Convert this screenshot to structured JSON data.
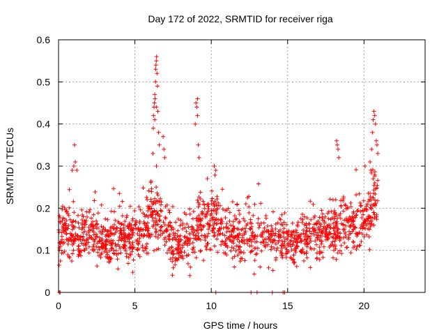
{
  "chart_data": {
    "type": "scatter",
    "title": "Day 172 of 2022, SRMTID for receiver riga",
    "xlabel": "GPS time / hours",
    "ylabel": "SRMTID / TECUs",
    "xlim": [
      0,
      24
    ],
    "ylim": [
      0,
      0.6
    ],
    "xticks": [
      0,
      5,
      10,
      15,
      20
    ],
    "yticks": [
      0,
      0.1,
      0.2,
      0.3,
      0.4,
      0.5,
      0.6
    ],
    "xtick_labels": [
      "0",
      "5",
      "10",
      "15",
      "20"
    ],
    "ytick_labels": [
      "0",
      "0.1",
      "0.2",
      "0.3",
      "0.4",
      "0.5",
      "0.6"
    ],
    "grid": true,
    "marker": "+",
    "color": "#ff0000",
    "envelope": [
      [
        0.0,
        0.12,
        0.05
      ],
      [
        0.5,
        0.15,
        0.06
      ],
      [
        1.0,
        0.13,
        0.06
      ],
      [
        1.5,
        0.14,
        0.05
      ],
      [
        2.0,
        0.15,
        0.05
      ],
      [
        2.5,
        0.13,
        0.05
      ],
      [
        3.0,
        0.12,
        0.05
      ],
      [
        3.5,
        0.13,
        0.05
      ],
      [
        4.0,
        0.13,
        0.05
      ],
      [
        4.5,
        0.12,
        0.05
      ],
      [
        5.0,
        0.14,
        0.06
      ],
      [
        5.5,
        0.15,
        0.06
      ],
      [
        6.0,
        0.18,
        0.07
      ],
      [
        6.5,
        0.2,
        0.07
      ],
      [
        7.0,
        0.14,
        0.06
      ],
      [
        7.5,
        0.12,
        0.05
      ],
      [
        8.0,
        0.11,
        0.04
      ],
      [
        8.5,
        0.12,
        0.05
      ],
      [
        9.0,
        0.14,
        0.06
      ],
      [
        9.5,
        0.16,
        0.06
      ],
      [
        10.0,
        0.17,
        0.06
      ],
      [
        10.5,
        0.16,
        0.05
      ],
      [
        11.0,
        0.14,
        0.05
      ],
      [
        11.5,
        0.13,
        0.05
      ],
      [
        12.0,
        0.13,
        0.05
      ],
      [
        12.5,
        0.14,
        0.06
      ],
      [
        13.0,
        0.13,
        0.05
      ],
      [
        13.5,
        0.14,
        0.05
      ],
      [
        14.0,
        0.13,
        0.05
      ],
      [
        14.5,
        0.12,
        0.05
      ],
      [
        15.0,
        0.12,
        0.05
      ],
      [
        15.5,
        0.12,
        0.05
      ],
      [
        16.0,
        0.13,
        0.05
      ],
      [
        16.5,
        0.13,
        0.05
      ],
      [
        17.0,
        0.13,
        0.05
      ],
      [
        17.5,
        0.14,
        0.05
      ],
      [
        18.0,
        0.15,
        0.06
      ],
      [
        18.5,
        0.16,
        0.06
      ],
      [
        19.0,
        0.15,
        0.05
      ],
      [
        19.5,
        0.16,
        0.06
      ],
      [
        20.0,
        0.17,
        0.06
      ],
      [
        20.5,
        0.2,
        0.06
      ],
      [
        20.9,
        0.22,
        0.06
      ]
    ],
    "highlights": [
      [
        6.18,
        0.33
      ],
      [
        6.2,
        0.39
      ],
      [
        6.22,
        0.42
      ],
      [
        6.25,
        0.44
      ],
      [
        6.28,
        0.45
      ],
      [
        6.3,
        0.47
      ],
      [
        6.32,
        0.46
      ],
      [
        6.35,
        0.5
      ],
      [
        6.36,
        0.53
      ],
      [
        6.38,
        0.54
      ],
      [
        6.4,
        0.55
      ],
      [
        6.42,
        0.56
      ],
      [
        6.45,
        0.52
      ],
      [
        6.48,
        0.49
      ],
      [
        6.5,
        0.43
      ],
      [
        6.55,
        0.38
      ],
      [
        6.6,
        0.35
      ],
      [
        6.85,
        0.37
      ],
      [
        6.9,
        0.34
      ],
      [
        6.95,
        0.32
      ],
      [
        6.3,
        0.41
      ],
      [
        6.4,
        0.44
      ],
      [
        0.9,
        0.29
      ],
      [
        1.0,
        0.3
      ],
      [
        1.05,
        0.35
      ],
      [
        1.1,
        0.31
      ],
      [
        1.2,
        0.29
      ],
      [
        8.95,
        0.4
      ],
      [
        9.0,
        0.45
      ],
      [
        9.05,
        0.44
      ],
      [
        9.1,
        0.46
      ],
      [
        9.1,
        0.42
      ],
      [
        9.15,
        0.35
      ],
      [
        9.2,
        0.32
      ],
      [
        10.2,
        0.3
      ],
      [
        10.3,
        0.29
      ],
      [
        18.2,
        0.36
      ],
      [
        18.25,
        0.35
      ],
      [
        18.3,
        0.34
      ],
      [
        18.35,
        0.32
      ],
      [
        20.4,
        0.31
      ],
      [
        20.5,
        0.34
      ],
      [
        20.55,
        0.38
      ],
      [
        20.6,
        0.41
      ],
      [
        20.65,
        0.43
      ],
      [
        20.7,
        0.42
      ],
      [
        20.75,
        0.4
      ],
      [
        20.8,
        0.36
      ],
      [
        20.85,
        0.35
      ],
      [
        20.9,
        0.33
      ],
      [
        20.45,
        0.29
      ],
      [
        20.6,
        0.27
      ],
      [
        20.7,
        0.28
      ]
    ],
    "baseline_points": [
      0.05,
      0.1,
      10.3,
      12.6,
      13.0,
      14.0,
      14.7,
      14.8
    ],
    "num_random_points": 1600
  }
}
